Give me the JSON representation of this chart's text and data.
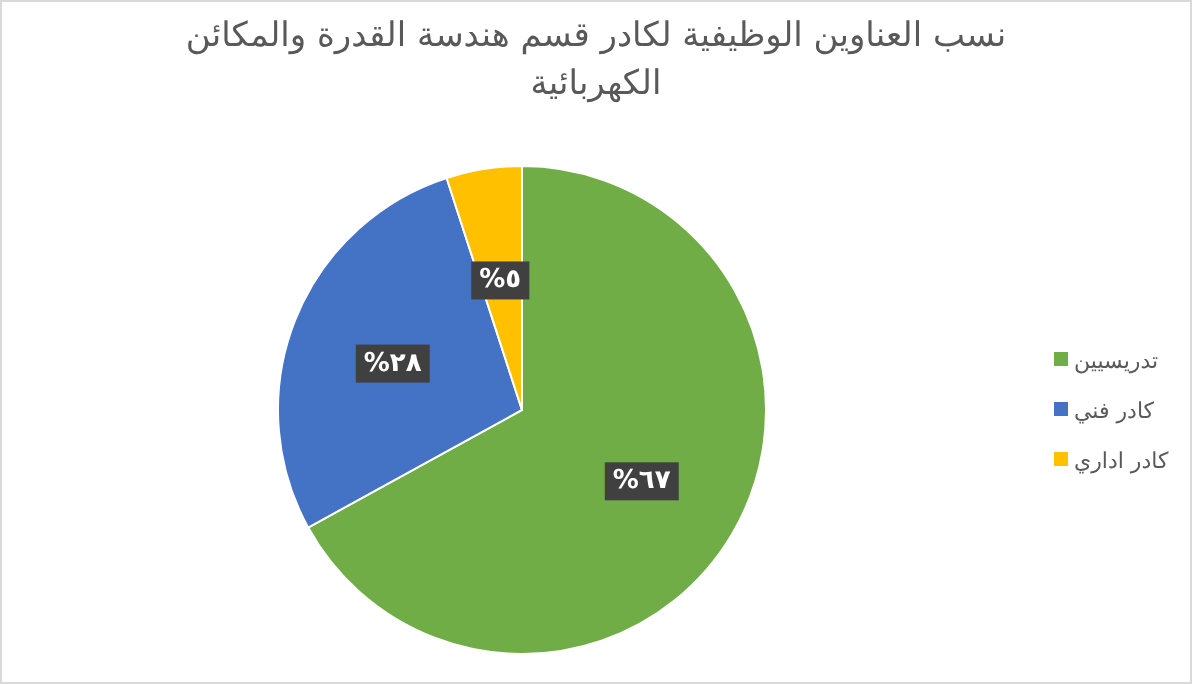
{
  "chart_data": {
    "type": "pie",
    "title": "نسب العناوين الوظيفية لكادر قسم هندسة القدرة والمكائن الكهربائية",
    "categories": [
      "تدريسيين",
      "كادر فني",
      "كادر اداري"
    ],
    "values": [
      67,
      28,
      5
    ],
    "colors": [
      "#70ad47",
      "#4472c4",
      "#ffc000"
    ],
    "value_labels": [
      "٦٧%",
      "٢٨%",
      "٥%"
    ],
    "legend": "right"
  }
}
